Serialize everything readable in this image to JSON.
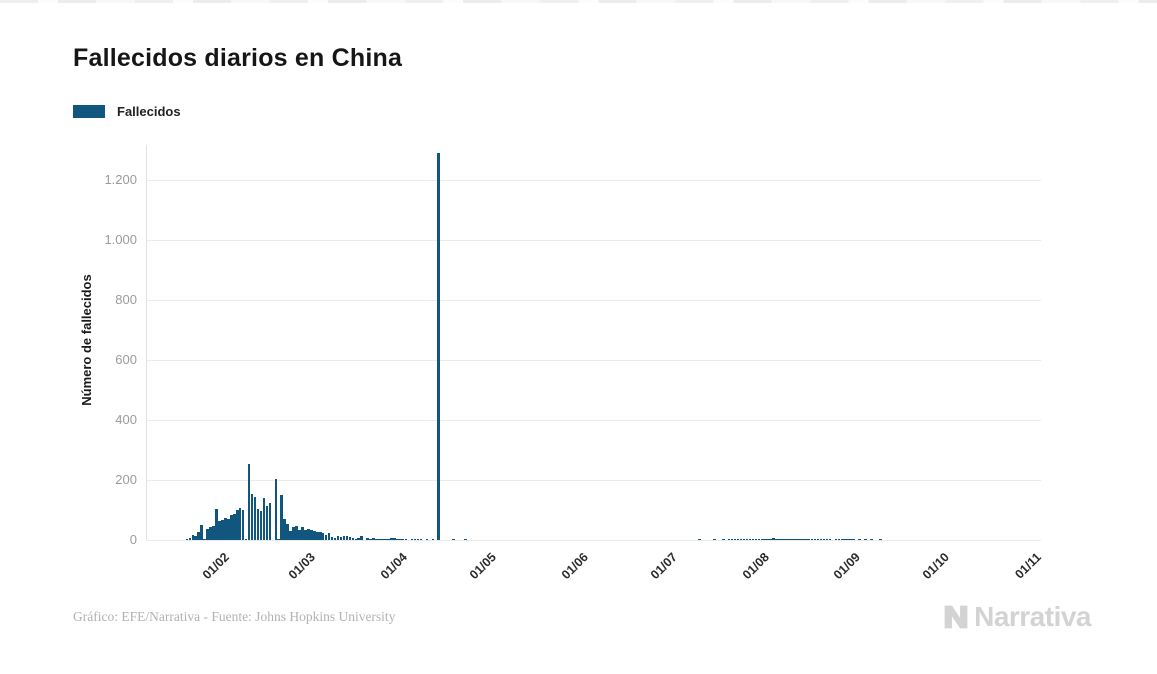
{
  "header": {
    "title": "Fallecidos diarios en China"
  },
  "legend": {
    "items": [
      {
        "label": "Fallecidos",
        "color": "#11567E"
      }
    ]
  },
  "chart_data": {
    "type": "bar",
    "title": "Fallecidos diarios en China",
    "xlabel": "",
    "ylabel": "Número de fallecidos",
    "ylim": [
      0,
      1300
    ],
    "grid": true,
    "legend_position": "top-left",
    "bar_color": "#11567E",
    "background": "#ffffff",
    "y_ticks": [
      "0",
      "200",
      "400",
      "600",
      "800",
      "1.000",
      "1.200"
    ],
    "y_tick_values": [
      0,
      200,
      400,
      600,
      800,
      1000,
      1200
    ],
    "x_ticks": [
      "01/02",
      "01/03",
      "01/04",
      "01/05",
      "01/06",
      "01/07",
      "01/08",
      "01/09",
      "01/10",
      "01/11"
    ],
    "series": [
      {
        "name": "Fallecidos",
        "start_date": "2020-01-23",
        "values": [
          1,
          8,
          16,
          14,
          26,
          49,
          2,
          38,
          42,
          46,
          102,
          64,
          66,
          72,
          70,
          85,
          87,
          100,
          107,
          100,
          5,
          252,
          152,
          142,
          103,
          98,
          139,
          113,
          122,
          0,
          205,
          2,
          150,
          70,
          52,
          29,
          44,
          47,
          35,
          42,
          33,
          36,
          32,
          29,
          28,
          28,
          23,
          16,
          22,
          11,
          8,
          13,
          10,
          14,
          13,
          11,
          8,
          4,
          6,
          15,
          0,
          7,
          4,
          6,
          5,
          3,
          5,
          4,
          1,
          7,
          6,
          4,
          4,
          3,
          2,
          0,
          2,
          2,
          1,
          3,
          0,
          2,
          0,
          1,
          0,
          1290,
          0,
          0,
          0,
          0,
          1,
          0,
          0,
          0,
          1,
          0,
          0,
          0,
          0,
          0,
          0,
          0,
          0,
          0,
          0,
          0,
          0,
          0,
          0,
          0,
          0,
          0,
          0,
          0,
          0,
          0,
          0,
          0,
          0,
          0,
          0,
          0,
          0,
          0,
          0,
          0,
          0,
          0,
          0,
          0,
          0,
          0,
          0,
          0,
          0,
          0,
          0,
          0,
          0,
          0,
          0,
          0,
          0,
          0,
          0,
          0,
          0,
          0,
          0,
          0,
          0,
          0,
          0,
          0,
          0,
          0,
          0,
          0,
          0,
          0,
          0,
          0,
          0,
          0,
          0,
          0,
          0,
          0,
          0,
          0,
          0,
          0,
          0,
          1,
          0,
          0,
          0,
          0,
          1,
          0,
          0,
          1,
          0,
          2,
          1,
          1,
          2,
          1,
          2,
          3,
          3,
          2,
          3,
          3,
          4,
          4,
          3,
          5,
          7,
          2,
          3,
          3,
          3,
          4,
          5,
          3,
          3,
          4,
          2,
          5,
          3,
          2,
          2,
          1,
          2,
          1,
          2,
          1,
          0,
          1,
          1,
          2,
          1,
          1,
          2,
          1,
          0,
          1,
          0,
          1,
          0,
          1,
          0,
          0,
          1,
          0,
          0,
          0,
          0,
          0,
          0,
          0,
          0,
          0,
          0,
          0,
          0,
          0,
          0,
          0,
          0,
          0,
          0,
          0,
          0,
          0,
          0,
          0,
          0,
          0,
          0,
          0,
          0,
          0,
          0,
          0,
          0,
          0,
          0,
          0,
          0,
          0,
          0,
          0,
          0,
          0,
          0,
          0,
          0,
          0,
          0,
          0,
          0,
          0
        ]
      }
    ]
  },
  "footer": {
    "credit": "Gráfico: EFE/Narrativa - Fuente: Johns Hopkins University",
    "logo_text": "Narrativa"
  }
}
